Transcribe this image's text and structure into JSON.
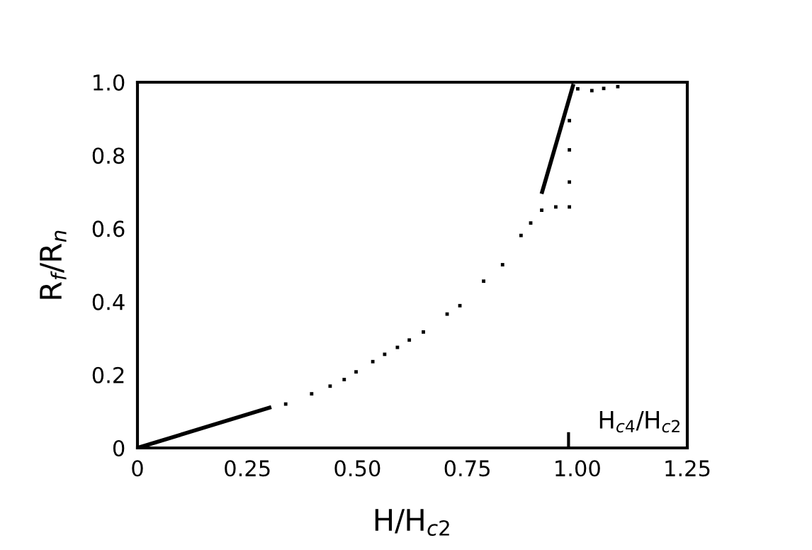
{
  "chart_data": {
    "type": "line",
    "xlabel": "H/H$_{c2}$",
    "ylabel": "R$_{f}$/R$_{n}$",
    "xlim": [
      0,
      1.25
    ],
    "ylim": [
      0,
      1.0
    ],
    "xticks": [
      {
        "value": 0,
        "label": "0"
      },
      {
        "value": 0.25,
        "label": "0.25"
      },
      {
        "value": 0.5,
        "label": "0.50"
      },
      {
        "value": 0.75,
        "label": "0.75"
      },
      {
        "value": 1.0,
        "label": "1.00"
      },
      {
        "value": 1.25,
        "label": "1.25"
      },
      {
        "value": 0.98,
        "label": null
      }
    ],
    "yticks": [
      0,
      0.2,
      0.4,
      0.6,
      0.8,
      {
        "value": 1,
        "label": "1.0"
      }
    ],
    "grid": false,
    "legend": false,
    "annotations": [
      "H$_{c4}$/H$_{c2}$"
    ],
    "series": [
      {
        "color": "#000000",
        "x": [
          0,
          0.3
        ],
        "values": [
          0,
          0.11
        ]
      },
      {
        "color": "#000000",
        "x": [
          0.92,
          0.99
        ],
        "values": [
          0.7,
          0.99
        ]
      },
      {
        "type": "scatter",
        "marker": "square",
        "color": "#000000",
        "x": [
          0.337,
          0.396,
          0.438,
          0.47,
          0.497,
          0.535,
          0.562,
          0.591,
          0.618,
          0.65,
          0.704,
          0.733,
          0.787,
          0.83,
          0.872,
          0.894,
          0.919,
          0.951,
          0.982
        ],
        "values": [
          0.12,
          0.148,
          0.169,
          0.187,
          0.208,
          0.236,
          0.256,
          0.275,
          0.295,
          0.317,
          0.366,
          0.389,
          0.456,
          0.501,
          0.581,
          0.615,
          0.65,
          0.659,
          0.659
        ]
      },
      {
        "type": "scatter",
        "marker": "square",
        "color": "#000000",
        "x": [
          0.982,
          0.982,
          0.982,
          1.001,
          1.033,
          1.06,
          1.092
        ],
        "values": [
          0.727,
          0.815,
          0.895,
          0.982,
          0.977,
          0.983,
          0.988
        ]
      }
    ]
  }
}
